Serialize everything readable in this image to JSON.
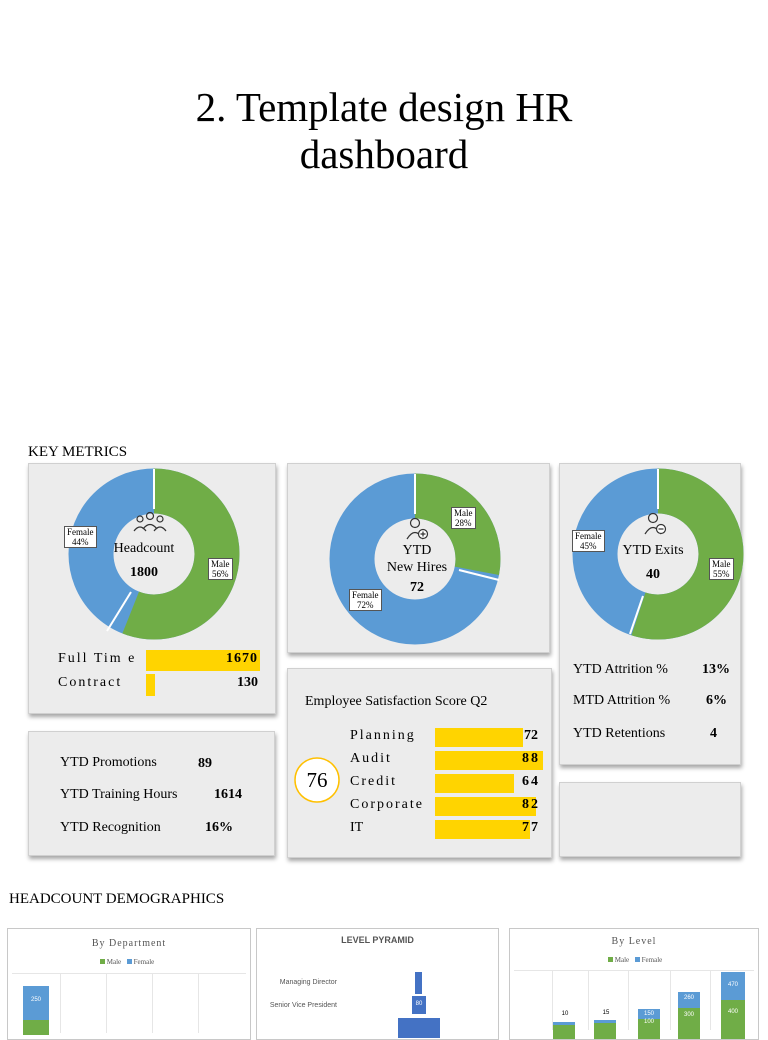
{
  "page": {
    "title_line1": "2. Template design HR",
    "title_line2": "dashboard"
  },
  "key_metrics": {
    "label": "KEY METRICS",
    "headcount": {
      "label": "Headcount",
      "value": "1800",
      "female_label": "Female",
      "female_pct": "44%",
      "male_label": "Male",
      "male_pct": "56%",
      "full_time_label": "Full Tim e",
      "full_time_value": "1670",
      "full_time_fraction": 1.0,
      "contract_label": "Contract",
      "contract_value": "130",
      "contract_fraction": 0.078
    },
    "new_hires": {
      "label_line1": "YTD",
      "label_line2": "New Hires",
      "value": "72",
      "male_label": "Male",
      "male_pct": "28%",
      "female_label": "Female",
      "female_pct": "72%"
    },
    "exits": {
      "label": "YTD Exits",
      "value": "40",
      "female_label": "Female",
      "female_pct": "45%",
      "male_label": "Male",
      "male_pct": "55%"
    },
    "attrition": {
      "rows": [
        {
          "label": "YTD Attrition %",
          "value": "13%"
        },
        {
          "label": "MTD Attrition %",
          "value": "6%"
        },
        {
          "label": "YTD Retentions",
          "value": "4"
        }
      ]
    },
    "promotions": {
      "rows": [
        {
          "label": "YTD Promotions",
          "value": "89"
        },
        {
          "label": "YTD Training Hours",
          "value": "1614"
        },
        {
          "label": "YTD Recognition",
          "value": "16%"
        }
      ]
    },
    "satisfaction": {
      "title": "Employee Satisfaction Score Q2",
      "overall": "76",
      "rows": [
        {
          "label": "Planning",
          "value": "72"
        },
        {
          "label": "Audit",
          "value": "88"
        },
        {
          "label": "Credit",
          "value": "64"
        },
        {
          "label": "Corporate",
          "value": "82"
        },
        {
          "label": "IT",
          "value": "77"
        }
      ]
    },
    "colors": {
      "male": "#70ad47",
      "female": "#5b9bd5",
      "bar": "#ffd400",
      "card": "#ececec"
    }
  },
  "demographics": {
    "label": "HEADCOUNT DEMOGRAPHICS",
    "by_department": {
      "title": "By Department",
      "legend_male": "Male",
      "legend_female": "Female",
      "visible_value": "250"
    },
    "level_pyramid": {
      "title": "LEVEL PYRAMID",
      "levels": [
        "Managing Director",
        "Senior Vice President"
      ],
      "visible_value": "80"
    },
    "by_level": {
      "title": "By Level",
      "legend_male": "Male",
      "legend_female": "Female",
      "top_labels": [
        "10",
        "15"
      ],
      "bar_values": [
        "150",
        "100",
        "260",
        "300",
        "470",
        "400"
      ]
    }
  }
}
